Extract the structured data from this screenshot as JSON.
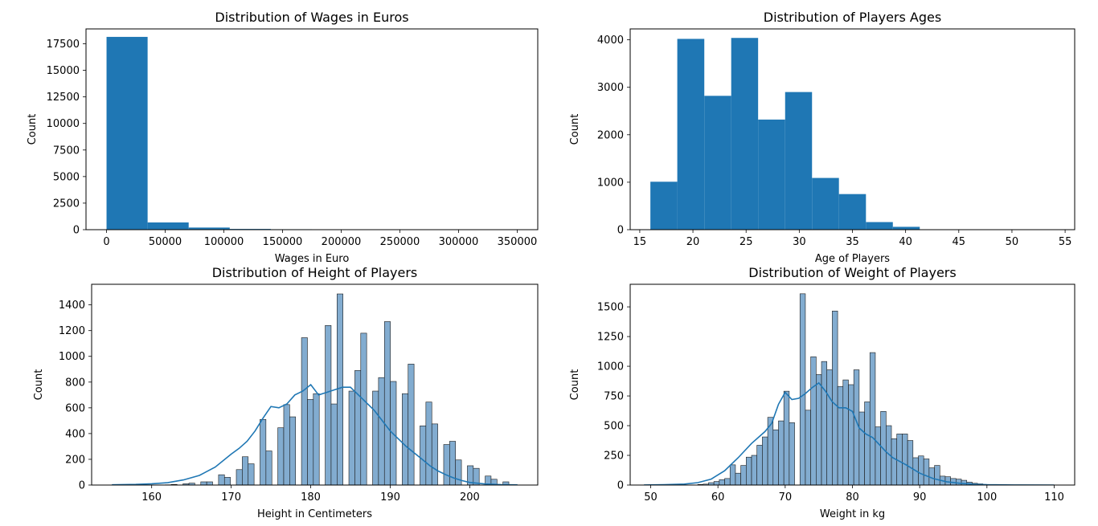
{
  "colors": {
    "bar": "#1f77b4",
    "bar_light": "#82acd0",
    "edge": "#1a1a1a",
    "kde": "#1f77b4"
  },
  "chart_data": [
    {
      "type": "bar",
      "title": "Distribution of Wages in Euros",
      "xlabel": "Wages in Euro",
      "ylabel": "Count",
      "xlim": [
        -17500,
        367500
      ],
      "ylim": [
        0,
        18900
      ],
      "xticks": [
        0,
        50000,
        100000,
        150000,
        200000,
        250000,
        300000,
        350000
      ],
      "yticks": [
        0,
        2500,
        5000,
        7500,
        10000,
        12500,
        15000,
        17500
      ],
      "bins": [
        {
          "x0": 0,
          "x1": 35000,
          "count": 18150
        },
        {
          "x0": 35000,
          "x1": 70000,
          "count": 680
        },
        {
          "x0": 70000,
          "x1": 105000,
          "count": 200
        },
        {
          "x0": 105000,
          "x1": 140000,
          "count": 70
        },
        {
          "x0": 140000,
          "x1": 175000,
          "count": 40
        },
        {
          "x0": 175000,
          "x1": 210000,
          "count": 10
        },
        {
          "x0": 210000,
          "x1": 245000,
          "count": 5
        },
        {
          "x0": 245000,
          "x1": 280000,
          "count": 3
        },
        {
          "x0": 280000,
          "x1": 315000,
          "count": 2
        },
        {
          "x0": 315000,
          "x1": 350000,
          "count": 1
        }
      ]
    },
    {
      "type": "bar",
      "title": "Distribution of Players Ages",
      "xlabel": "Age of Players",
      "ylabel": "Count",
      "xlim": [
        14.1,
        55.9
      ],
      "ylim": [
        0,
        4230
      ],
      "xticks": [
        15,
        20,
        25,
        30,
        35,
        40,
        45,
        50,
        55
      ],
      "yticks": [
        0,
        1000,
        2000,
        3000,
        4000
      ],
      "bins": [
        {
          "x0": 16,
          "x1": 18.53,
          "count": 1010
        },
        {
          "x0": 18.53,
          "x1": 21.07,
          "count": 4020
        },
        {
          "x0": 21.07,
          "x1": 23.6,
          "count": 2820
        },
        {
          "x0": 23.6,
          "x1": 26.13,
          "count": 4040
        },
        {
          "x0": 26.13,
          "x1": 28.67,
          "count": 2320
        },
        {
          "x0": 28.67,
          "x1": 31.2,
          "count": 2900
        },
        {
          "x0": 31.2,
          "x1": 33.73,
          "count": 1090
        },
        {
          "x0": 33.73,
          "x1": 36.27,
          "count": 750
        },
        {
          "x0": 36.27,
          "x1": 38.8,
          "count": 160
        },
        {
          "x0": 38.8,
          "x1": 41.33,
          "count": 60
        },
        {
          "x0": 41.33,
          "x1": 43.87,
          "count": 5
        },
        {
          "x0": 43.87,
          "x1": 46.4,
          "count": 2
        },
        {
          "x0": 46.4,
          "x1": 48.93,
          "count": 1
        },
        {
          "x0": 48.93,
          "x1": 51.47,
          "count": 1
        },
        {
          "x0": 51.47,
          "x1": 54,
          "count": 1
        }
      ]
    },
    {
      "type": "bar",
      "title": "Distribution of Height of Players",
      "xlabel": "Height in Centimeters",
      "ylabel": "Count",
      "xlim": [
        152.45,
        208.55
      ],
      "ylim": [
        0,
        1560
      ],
      "xticks": [
        160,
        170,
        180,
        190,
        200
      ],
      "yticks": [
        0,
        200,
        400,
        600,
        800,
        1000,
        1200,
        1400
      ],
      "bin_start": 155,
      "bin_width": 0.745,
      "counts": [
        0,
        0,
        0,
        0,
        0,
        0,
        0,
        0,
        0,
        2,
        5,
        0,
        10,
        15,
        0,
        25,
        25,
        0,
        80,
        60,
        0,
        120,
        220,
        165,
        0,
        510,
        265,
        0,
        445,
        625,
        530,
        0,
        1145,
        665,
        710,
        0,
        1240,
        630,
        1485,
        0,
        730,
        890,
        1180,
        0,
        730,
        835,
        1270,
        805,
        0,
        710,
        940,
        0,
        460,
        645,
        475,
        0,
        315,
        340,
        195,
        0,
        150,
        130,
        0,
        70,
        45,
        0,
        25,
        0
      ],
      "kde_x": [
        155,
        158,
        160,
        162,
        164,
        166,
        168,
        170,
        171,
        172,
        173,
        174,
        175,
        176,
        177,
        178,
        179,
        180,
        181,
        182,
        183,
        184,
        185,
        186,
        187,
        188,
        189,
        190,
        191,
        192,
        193,
        194,
        195,
        196,
        197,
        198,
        199,
        200,
        202,
        204,
        206
      ],
      "kde_y": [
        2,
        5,
        10,
        18,
        40,
        75,
        140,
        240,
        285,
        340,
        420,
        520,
        610,
        600,
        630,
        700,
        730,
        780,
        700,
        720,
        740,
        760,
        760,
        700,
        640,
        580,
        500,
        420,
        360,
        300,
        250,
        200,
        150,
        110,
        80,
        55,
        35,
        20,
        8,
        3,
        1
      ]
    },
    {
      "type": "bar",
      "title": "Distribution of Weight of Players",
      "xlabel": "Weight in kg",
      "ylabel": "Count",
      "xlim": [
        46.95,
        113.05
      ],
      "ylim": [
        0,
        1690
      ],
      "xticks": [
        50,
        60,
        70,
        80,
        90,
        100,
        110
      ],
      "yticks": [
        0,
        250,
        500,
        750,
        1000,
        1250,
        1500
      ],
      "bin_start": 49,
      "bin_width": 0.8,
      "counts": [
        0,
        0,
        0,
        0,
        0,
        0,
        0,
        0,
        0,
        0,
        5,
        8,
        20,
        30,
        45,
        55,
        170,
        100,
        165,
        235,
        250,
        335,
        405,
        570,
        465,
        540,
        790,
        525,
        0,
        1610,
        630,
        1080,
        930,
        1040,
        970,
        1465,
        830,
        885,
        845,
        970,
        615,
        700,
        1115,
        490,
        620,
        500,
        390,
        430,
        430,
        375,
        230,
        245,
        220,
        145,
        165,
        75,
        70,
        55,
        50,
        40,
        25,
        15,
        10,
        5,
        4,
        3,
        2,
        1,
        1,
        1,
        0,
        0,
        0,
        0,
        0,
        1
      ],
      "kde_x": [
        49,
        52,
        55,
        57,
        59,
        61,
        63,
        65,
        67,
        68,
        69,
        70,
        71,
        72,
        73,
        74,
        75,
        76,
        77,
        78,
        79,
        80,
        81,
        82,
        83,
        84,
        85,
        86,
        87,
        88,
        90,
        92,
        94,
        96,
        98,
        100,
        104,
        110
      ],
      "kde_y": [
        1,
        3,
        8,
        20,
        50,
        120,
        230,
        350,
        450,
        520,
        680,
        780,
        720,
        730,
        770,
        820,
        860,
        790,
        700,
        650,
        650,
        620,
        480,
        430,
        400,
        340,
        280,
        230,
        200,
        170,
        100,
        55,
        28,
        15,
        7,
        3,
        1,
        0
      ]
    }
  ]
}
